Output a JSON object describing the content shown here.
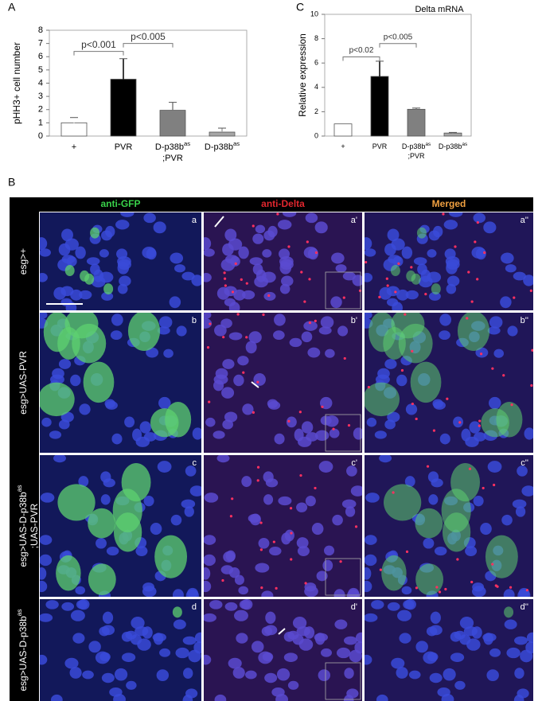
{
  "chart_data": [
    {
      "type": "bar",
      "panel": "A",
      "y_label": "pHH3+ cell number",
      "categories": [
        "+",
        "PVR",
        "D-p38bas;PVR",
        "D-p38bas"
      ],
      "values": [
        1.0,
        4.3,
        1.95,
        0.3
      ],
      "errors": [
        0.4,
        1.55,
        0.6,
        0.3
      ],
      "colors": [
        "#ffffff",
        "#000000",
        "#808080",
        "#a6a6a6"
      ],
      "ylim": [
        0,
        8
      ],
      "yticks": [
        0,
        1,
        2,
        3,
        4,
        5,
        6,
        7,
        8
      ],
      "annotations": [
        "p<0.001",
        "p<0.005"
      ]
    },
    {
      "type": "bar",
      "panel": "C",
      "title": "Delta mRNA",
      "y_label": "Relative expression",
      "categories": [
        "+",
        "PVR",
        "D-p38bas;PVR",
        "D-p38bas"
      ],
      "values": [
        1.0,
        4.9,
        2.2,
        0.25
      ],
      "errors": [
        0.0,
        1.25,
        0.1,
        0.05
      ],
      "colors": [
        "#ffffff",
        "#000000",
        "#808080",
        "#a6a6a6"
      ],
      "ylim": [
        0,
        10
      ],
      "yticks": [
        0,
        2,
        4,
        6,
        8,
        10
      ],
      "annotations": [
        "p<0.02",
        "p<0.005"
      ]
    }
  ],
  "figure_b": {
    "panel": "B",
    "columns": [
      "anti-GFP",
      "anti-Delta",
      "Merged"
    ],
    "rows": [
      {
        "label": "esg>+",
        "panels": [
          "a",
          "a'",
          "a''"
        ]
      },
      {
        "label": "esg>UAS-PVR",
        "panels": [
          "b",
          "b'",
          "b''"
        ]
      },
      {
        "label": "esg>UAS-D-p38bas;UAS-PVR",
        "panels": [
          "c",
          "c'",
          "c''"
        ]
      },
      {
        "label": "esg>UAS-D-p38bas",
        "panels": [
          "d",
          "d'",
          "d''"
        ]
      }
    ]
  }
}
